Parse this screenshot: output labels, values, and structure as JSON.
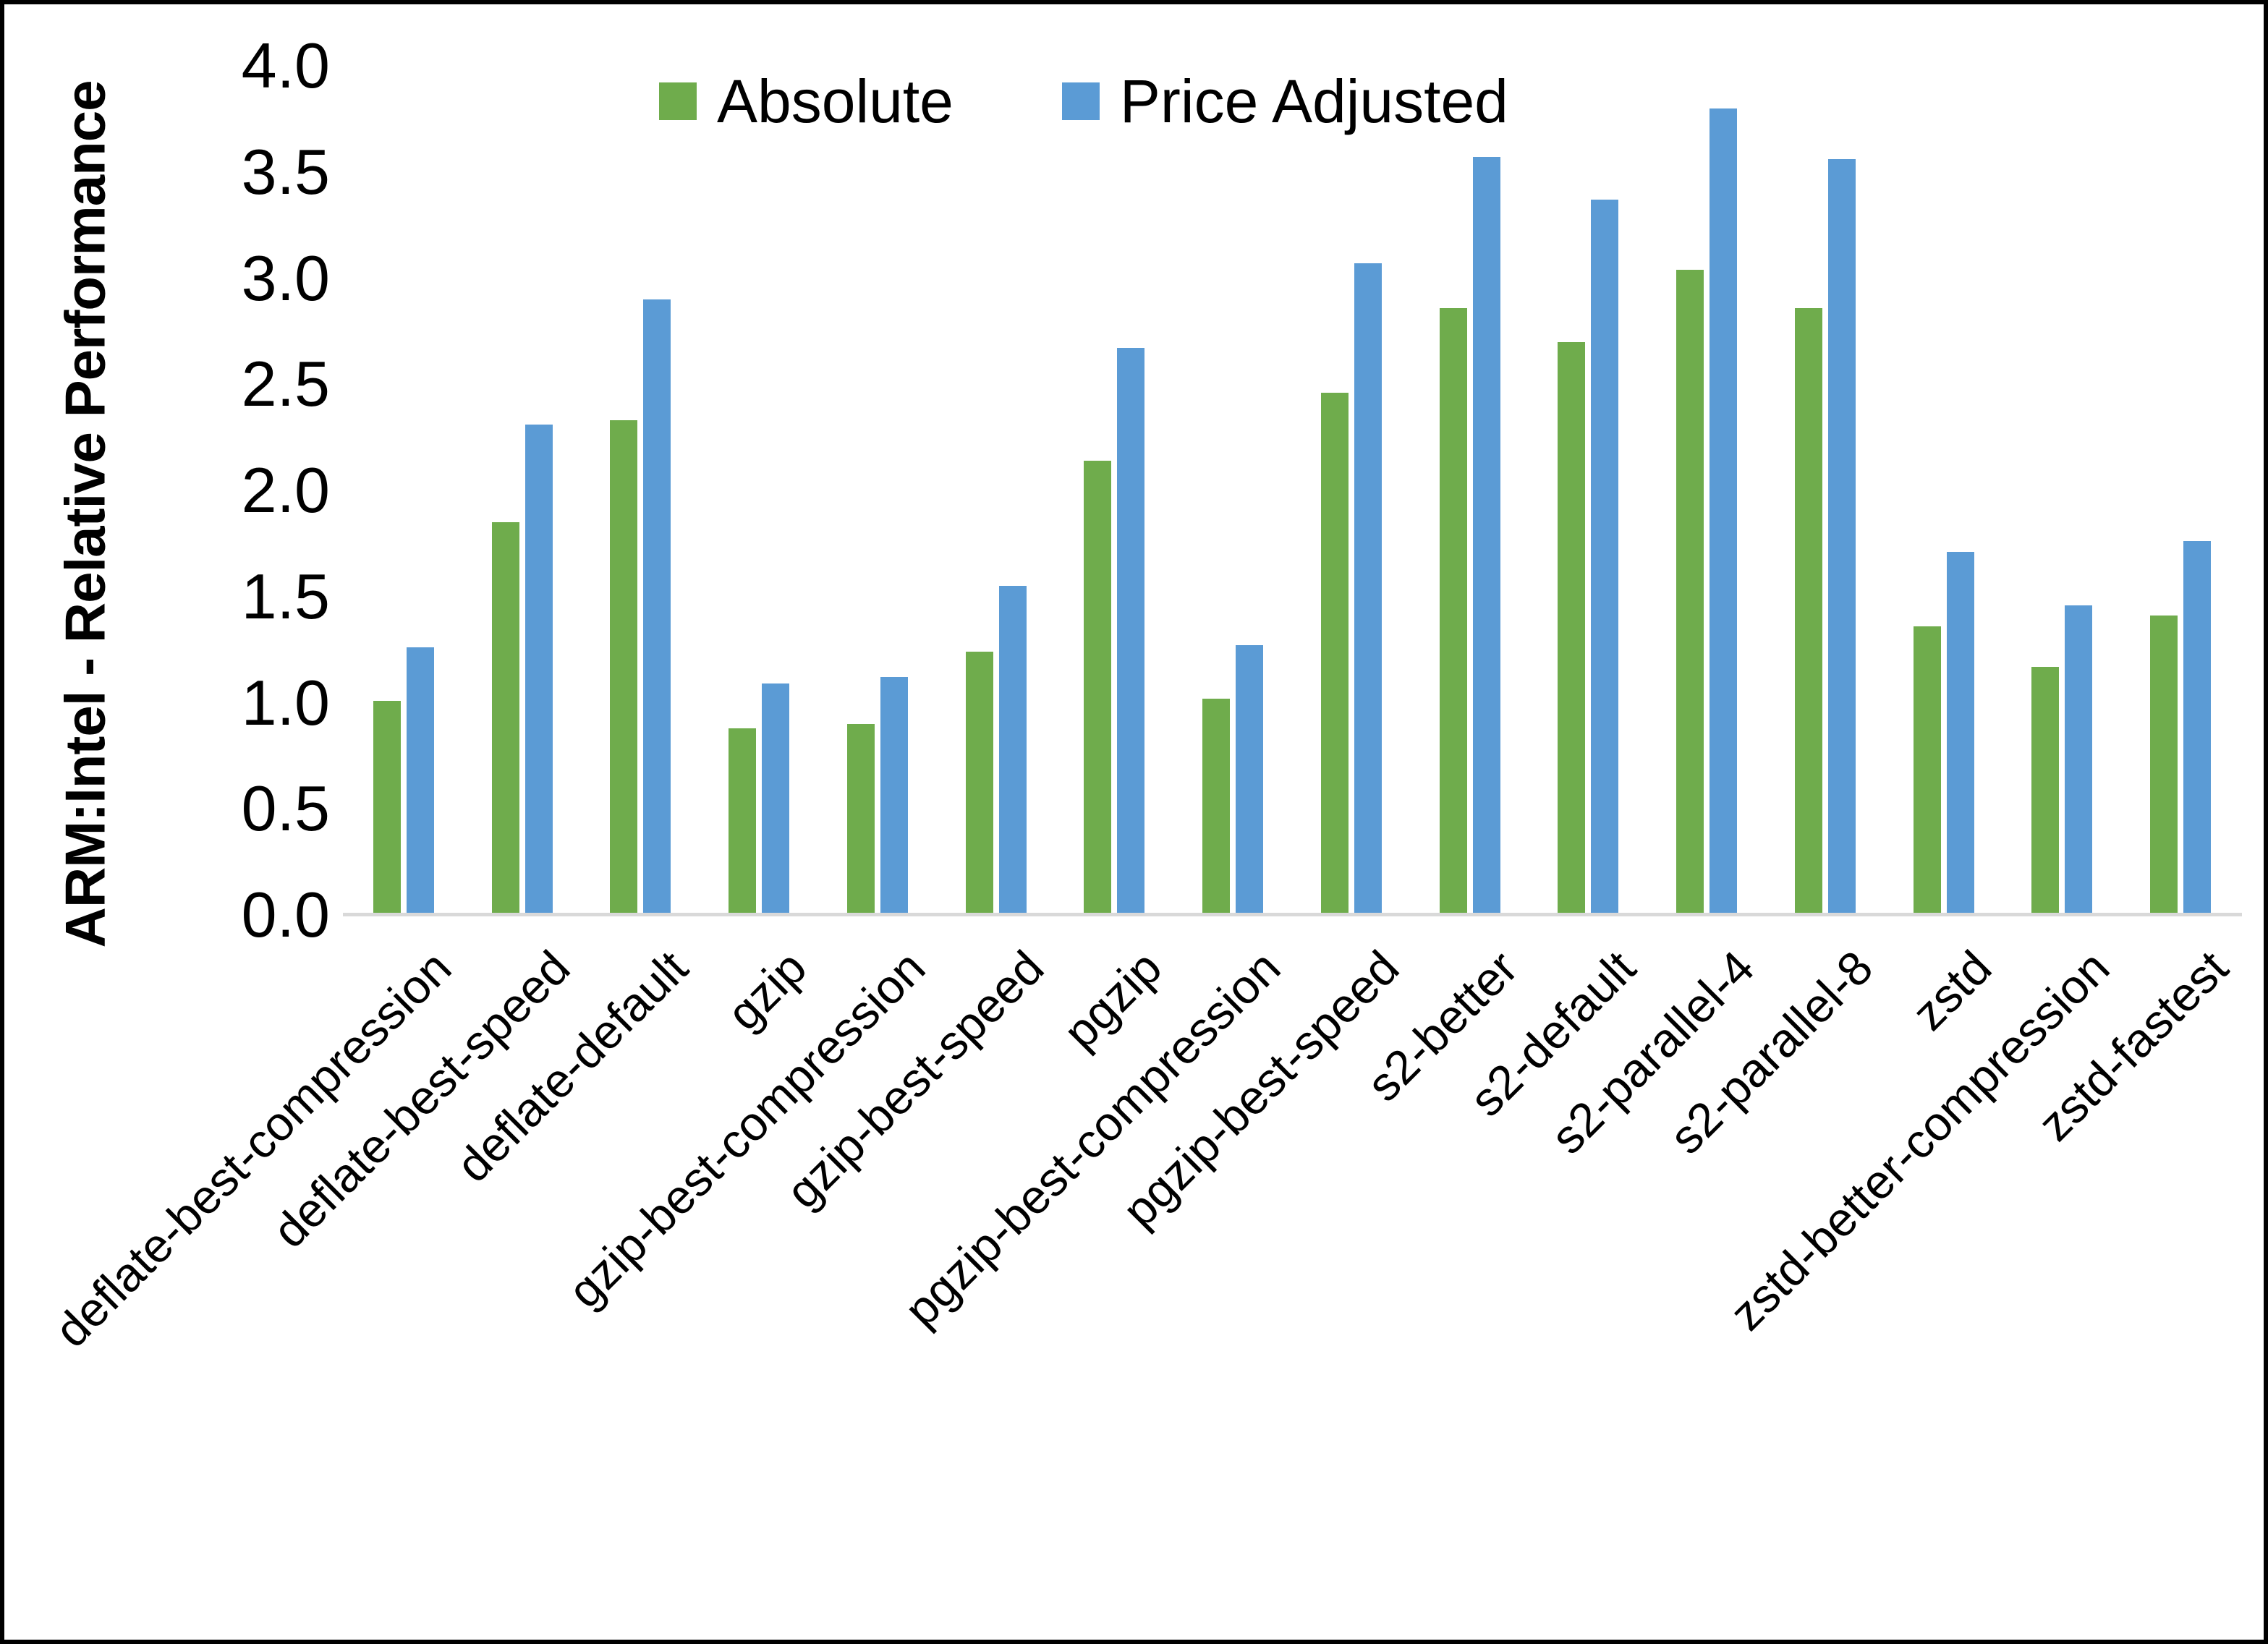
{
  "colors": {
    "background": "#FFFFFF",
    "frame_border": "#000000",
    "axis_line": "#D9D9D9",
    "text": "#000000",
    "series_absolute": "#6FAC4C",
    "series_price_adjusted": "#5B9BD5"
  },
  "chart_data": {
    "type": "bar",
    "title": "",
    "xlabel": "",
    "ylabel": "ARM:Intel - Relative Performance",
    "ylim": [
      0,
      4
    ],
    "ytick_step": 0.5,
    "yticks": [
      "0.0",
      "0.5",
      "1.0",
      "1.5",
      "2.0",
      "2.5",
      "3.0",
      "3.5",
      "4.0"
    ],
    "grid": false,
    "legend_position": "top-center",
    "categories": [
      "deflate-best-compression",
      "deflate-best-speed",
      "deflate-default",
      "gzip",
      "gzip-best-compression",
      "gzip-best-speed",
      "pgzip",
      "pgzip-best-compression",
      "pgzip-best-speed",
      "s2-better",
      "s2-default",
      "s2-parallel-4",
      "s2-parallel-8",
      "zstd",
      "zstd-better-compression",
      "zstd-fastest"
    ],
    "series": [
      {
        "name": "Absolute",
        "color": "#6FAC4C",
        "values": [
          1.01,
          1.85,
          2.33,
          0.88,
          0.9,
          1.24,
          2.14,
          1.02,
          2.46,
          2.86,
          2.7,
          3.04,
          2.86,
          1.36,
          1.17,
          1.41
        ]
      },
      {
        "name": "Price Adjusted",
        "color": "#5B9BD5",
        "values": [
          1.26,
          2.31,
          2.9,
          1.09,
          1.12,
          1.55,
          2.67,
          1.27,
          3.07,
          3.57,
          3.37,
          3.8,
          3.56,
          1.71,
          1.46,
          1.76
        ]
      }
    ]
  }
}
